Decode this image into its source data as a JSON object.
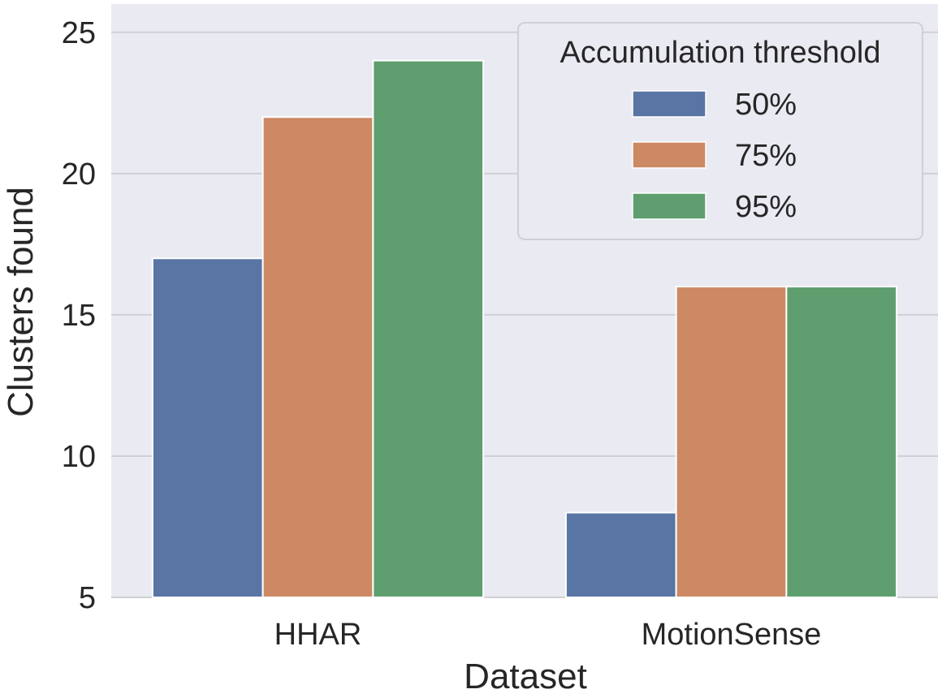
{
  "chart_data": {
    "type": "bar",
    "categories": [
      "HHAR",
      "MotionSense"
    ],
    "series": [
      {
        "name": "50%",
        "values": [
          17,
          8
        ],
        "color": "#5875a4"
      },
      {
        "name": "75%",
        "values": [
          22,
          16
        ],
        "color": "#cc8963"
      },
      {
        "name": "95%",
        "values": [
          24,
          16
        ],
        "color": "#5f9e6e"
      }
    ],
    "xlabel": "Dataset",
    "ylabel": "Clusters found",
    "ylim": [
      5,
      26
    ],
    "yticks": [
      5,
      10,
      15,
      20,
      25
    ],
    "grid": true,
    "legend": {
      "title": "Accumulation threshold",
      "placement": "top-right"
    },
    "plot_background": "#eaeaf2",
    "gridline_color": "#cfcfd6"
  }
}
